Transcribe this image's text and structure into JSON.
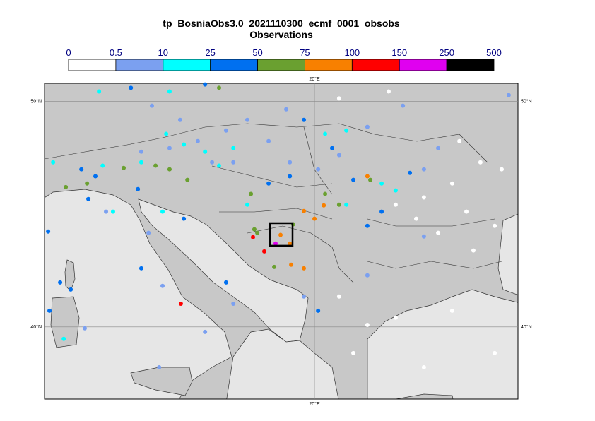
{
  "title": "tp_BosniaObs3.0_2021110300_ecmf_0001_obsobs",
  "subtitle": "Observations",
  "legend": {
    "bounds": [
      0,
      0.5,
      10,
      25,
      50,
      75,
      100,
      150,
      250,
      500
    ],
    "colors": [
      "#ffffff",
      "#7ba0f0",
      "#00ffff",
      "#0070f0",
      "#6aa030",
      "#f88000",
      "#ff0000",
      "#e000f0",
      "#000000"
    ]
  },
  "map": {
    "lon_range": [
      8.06,
      29
    ],
    "lat_range": [
      36.8,
      50.8
    ],
    "lon_lines": [
      {
        "value": 20,
        "label": "20°E"
      }
    ],
    "lat_lines": [
      {
        "value": 50,
        "label": "50°N"
      },
      {
        "value": 40,
        "label": "40°N"
      }
    ],
    "selection": {
      "lon": [
        18.03,
        19.03
      ],
      "lat": [
        43.6,
        44.6
      ]
    }
  },
  "stations": [
    {
      "lon": 17.28,
      "lat": 43.98,
      "value": 120
    },
    {
      "lon": 17.78,
      "lat": 43.35,
      "value": 120
    },
    {
      "lon": 14.09,
      "lat": 41.03,
      "value": 120
    },
    {
      "lon": 18.28,
      "lat": 43.7,
      "value": 180
    },
    {
      "lon": 19.53,
      "lat": 45.14,
      "value": 85
    },
    {
      "lon": 20.41,
      "lat": 45.39,
      "value": 85
    },
    {
      "lon": 18.97,
      "lat": 42.76,
      "value": 85
    },
    {
      "lon": 18.91,
      "lat": 43.7,
      "value": 85
    },
    {
      "lon": 18.5,
      "lat": 44.08,
      "value": 85
    },
    {
      "lon": 20,
      "lat": 44.8,
      "value": 85
    },
    {
      "lon": 22.34,
      "lat": 46.68,
      "value": 85
    },
    {
      "lon": 19.53,
      "lat": 42.6,
      "value": 85
    },
    {
      "lon": 17.34,
      "lat": 44.33,
      "value": 60
    },
    {
      "lon": 17.47,
      "lat": 44.17,
      "value": 60
    },
    {
      "lon": 18.22,
      "lat": 42.66,
      "value": 60
    },
    {
      "lon": 19.06,
      "lat": 44.55,
      "value": 60
    },
    {
      "lon": 17.19,
      "lat": 45.9,
      "value": 60
    },
    {
      "lon": 21.09,
      "lat": 45.42,
      "value": 60
    },
    {
      "lon": 22.47,
      "lat": 46.52,
      "value": 60
    },
    {
      "lon": 20.47,
      "lat": 45.9,
      "value": 60
    },
    {
      "lon": 15.78,
      "lat": 50.6,
      "value": 60
    },
    {
      "lon": 9.0,
      "lat": 46.2,
      "value": 60
    },
    {
      "lon": 11.56,
      "lat": 47.05,
      "value": 60
    },
    {
      "lon": 13.59,
      "lat": 46.99,
      "value": 60
    },
    {
      "lon": 14.38,
      "lat": 46.52,
      "value": 60
    },
    {
      "lon": 12.97,
      "lat": 47.15,
      "value": 60
    },
    {
      "lon": 9.94,
      "lat": 46.36,
      "value": 60
    },
    {
      "lon": 8.22,
      "lat": 44.23,
      "value": 35
    },
    {
      "lon": 8.75,
      "lat": 41.97,
      "value": 35
    },
    {
      "lon": 9.22,
      "lat": 41.66,
      "value": 35
    },
    {
      "lon": 10.0,
      "lat": 45.67,
      "value": 35
    },
    {
      "lon": 12.19,
      "lat": 46.11,
      "value": 35
    },
    {
      "lon": 17.97,
      "lat": 46.36,
      "value": 35
    },
    {
      "lon": 18.91,
      "lat": 46.68,
      "value": 35
    },
    {
      "lon": 21.72,
      "lat": 46.52,
      "value": 35
    },
    {
      "lon": 22.97,
      "lat": 45.11,
      "value": 35
    },
    {
      "lon": 22.34,
      "lat": 44.48,
      "value": 35
    },
    {
      "lon": 24.22,
      "lat": 46.83,
      "value": 35
    },
    {
      "lon": 20.78,
      "lat": 47.93,
      "value": 35
    },
    {
      "lon": 19.53,
      "lat": 49.18,
      "value": 35
    },
    {
      "lon": 15.16,
      "lat": 50.75,
      "value": 35
    },
    {
      "lon": 11.88,
      "lat": 50.6,
      "value": 35
    },
    {
      "lon": 14.22,
      "lat": 44.8,
      "value": 35
    },
    {
      "lon": 16.09,
      "lat": 41.97,
      "value": 35
    },
    {
      "lon": 20.16,
      "lat": 40.72,
      "value": 35
    },
    {
      "lon": 12.34,
      "lat": 42.6,
      "value": 35
    },
    {
      "lon": 10.31,
      "lat": 46.68,
      "value": 35
    },
    {
      "lon": 9.69,
      "lat": 46.99,
      "value": 35
    },
    {
      "lon": 8.28,
      "lat": 40.72,
      "value": 35
    },
    {
      "lon": 12.34,
      "lat": 47.77,
      "value": 3
    },
    {
      "lon": 13.59,
      "lat": 47.93,
      "value": 3
    },
    {
      "lon": 14.84,
      "lat": 48.24,
      "value": 3
    },
    {
      "lon": 16.09,
      "lat": 48.71,
      "value": 3
    },
    {
      "lon": 17.03,
      "lat": 49.18,
      "value": 3
    },
    {
      "lon": 17.97,
      "lat": 48.24,
      "value": 3
    },
    {
      "lon": 18.91,
      "lat": 47.3,
      "value": 3
    },
    {
      "lon": 14.06,
      "lat": 49.18,
      "value": 3
    },
    {
      "lon": 12.81,
      "lat": 49.81,
      "value": 3
    },
    {
      "lon": 15.47,
      "lat": 47.3,
      "value": 3
    },
    {
      "lon": 16.41,
      "lat": 47.3,
      "value": 3
    },
    {
      "lon": 20.16,
      "lat": 46.99,
      "value": 3
    },
    {
      "lon": 24.84,
      "lat": 46.99,
      "value": 3
    },
    {
      "lon": 25.47,
      "lat": 47.93,
      "value": 3
    },
    {
      "lon": 21.09,
      "lat": 47.62,
      "value": 3
    },
    {
      "lon": 18.75,
      "lat": 49.65,
      "value": 3
    },
    {
      "lon": 22.34,
      "lat": 48.87,
      "value": 3
    },
    {
      "lon": 23.91,
      "lat": 49.81,
      "value": 3
    },
    {
      "lon": 10.78,
      "lat": 45.11,
      "value": 3
    },
    {
      "lon": 12.66,
      "lat": 44.17,
      "value": 3
    },
    {
      "lon": 13.28,
      "lat": 41.82,
      "value": 3
    },
    {
      "lon": 16.41,
      "lat": 41.03,
      "value": 3
    },
    {
      "lon": 15.16,
      "lat": 39.78,
      "value": 3
    },
    {
      "lon": 13.13,
      "lat": 38.21,
      "value": 3
    },
    {
      "lon": 19.53,
      "lat": 41.35,
      "value": 3
    },
    {
      "lon": 9.84,
      "lat": 39.94,
      "value": 3
    },
    {
      "lon": 28.59,
      "lat": 50.28,
      "value": 3
    },
    {
      "lon": 24.84,
      "lat": 44.01,
      "value": 3
    },
    {
      "lon": 22.34,
      "lat": 42.29,
      "value": 3
    },
    {
      "lon": 8.44,
      "lat": 47.3,
      "value": 15
    },
    {
      "lon": 10.63,
      "lat": 47.15,
      "value": 15
    },
    {
      "lon": 15.16,
      "lat": 47.77,
      "value": 15
    },
    {
      "lon": 15.78,
      "lat": 47.15,
      "value": 15
    },
    {
      "lon": 16.41,
      "lat": 47.93,
      "value": 15
    },
    {
      "lon": 13.44,
      "lat": 48.56,
      "value": 15
    },
    {
      "lon": 14.22,
      "lat": 48.09,
      "value": 15
    },
    {
      "lon": 12.34,
      "lat": 47.3,
      "value": 15
    },
    {
      "lon": 10.47,
      "lat": 50.44,
      "value": 15
    },
    {
      "lon": 13.59,
      "lat": 50.44,
      "value": 15
    },
    {
      "lon": 22.97,
      "lat": 46.36,
      "value": 15
    },
    {
      "lon": 23.59,
      "lat": 46.05,
      "value": 15
    },
    {
      "lon": 21.41,
      "lat": 45.42,
      "value": 15
    },
    {
      "lon": 21.41,
      "lat": 48.71,
      "value": 15
    },
    {
      "lon": 20.47,
      "lat": 48.56,
      "value": 15
    },
    {
      "lon": 11.09,
      "lat": 45.11,
      "value": 15
    },
    {
      "lon": 13.28,
      "lat": 45.11,
      "value": 15
    },
    {
      "lon": 17.03,
      "lat": 45.42,
      "value": 15
    },
    {
      "lon": 8.91,
      "lat": 39.47,
      "value": 15
    },
    {
      "lon": 23.59,
      "lat": 45.42,
      "value": 0
    },
    {
      "lon": 24.84,
      "lat": 45.74,
      "value": 0
    },
    {
      "lon": 26.09,
      "lat": 46.36,
      "value": 0
    },
    {
      "lon": 26.72,
      "lat": 45.11,
      "value": 0
    },
    {
      "lon": 27.97,
      "lat": 44.48,
      "value": 0
    },
    {
      "lon": 25.47,
      "lat": 44.17,
      "value": 0
    },
    {
      "lon": 27.34,
      "lat": 47.3,
      "value": 0
    },
    {
      "lon": 26.41,
      "lat": 48.24,
      "value": 0
    },
    {
      "lon": 24.5,
      "lat": 44.8,
      "value": 0
    },
    {
      "lon": 23.59,
      "lat": 40.41,
      "value": 0
    },
    {
      "lon": 24.84,
      "lat": 38.21,
      "value": 0
    },
    {
      "lon": 22.34,
      "lat": 40.09,
      "value": 0
    },
    {
      "lon": 26.09,
      "lat": 40.72,
      "value": 0
    },
    {
      "lon": 27.97,
      "lat": 38.84,
      "value": 0
    },
    {
      "lon": 21.09,
      "lat": 50.13,
      "value": 0
    },
    {
      "lon": 23.28,
      "lat": 50.44,
      "value": 0
    },
    {
      "lon": 21.72,
      "lat": 38.84,
      "value": 0
    },
    {
      "lon": 21.09,
      "lat": 41.35,
      "value": 0
    },
    {
      "lon": 28.28,
      "lat": 46.99,
      "value": 0
    },
    {
      "lon": 27.03,
      "lat": 43.39,
      "value": 0
    }
  ]
}
